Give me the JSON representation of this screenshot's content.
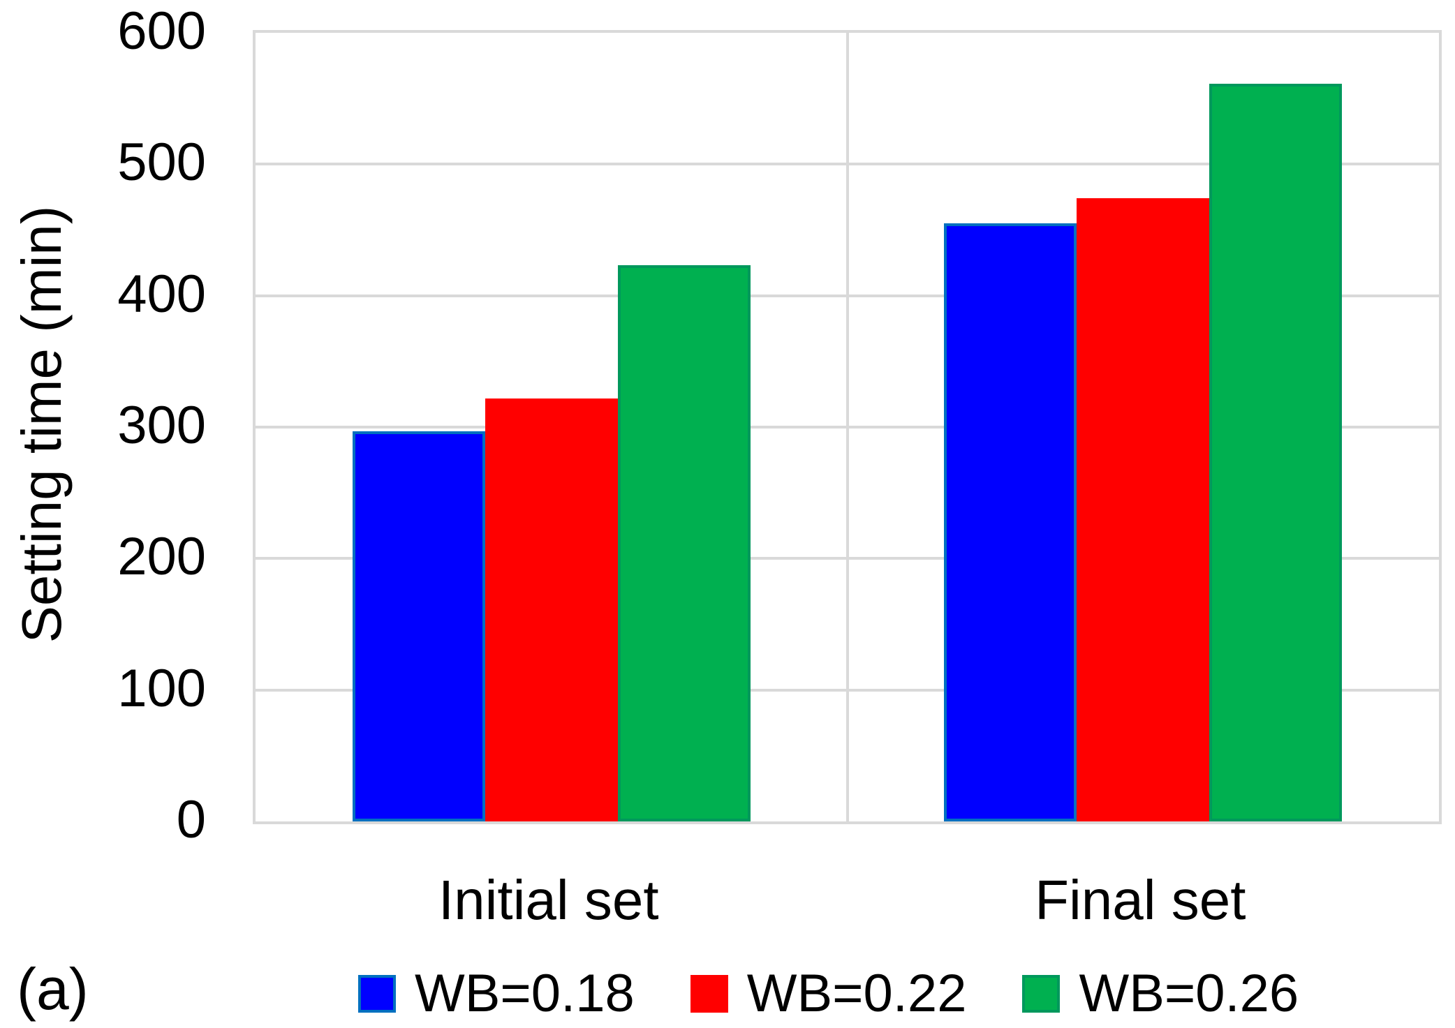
{
  "panel_label": "(a)",
  "chart_data": {
    "type": "bar",
    "title": "",
    "xlabel": "",
    "ylabel": "Setting time (min)",
    "categories": [
      "Initial set",
      "Final set"
    ],
    "series": [
      {
        "name": "WB=0.18",
        "values": [
          297,
          455
        ],
        "fill": "#0000ff",
        "border": "#0070c0"
      },
      {
        "name": "WB=0.22",
        "values": [
          322,
          474
        ],
        "fill": "#ff0000",
        "border": "#ff0000"
      },
      {
        "name": "WB=0.26",
        "values": [
          423,
          561
        ],
        "fill": "#00b050",
        "border": "#00985c"
      }
    ],
    "ylim": [
      0,
      600
    ],
    "yticks": [
      0,
      100,
      200,
      300,
      400,
      500,
      600
    ],
    "grid": true,
    "gridline_color": "#d9d9d9",
    "legend_position": "bottom"
  }
}
